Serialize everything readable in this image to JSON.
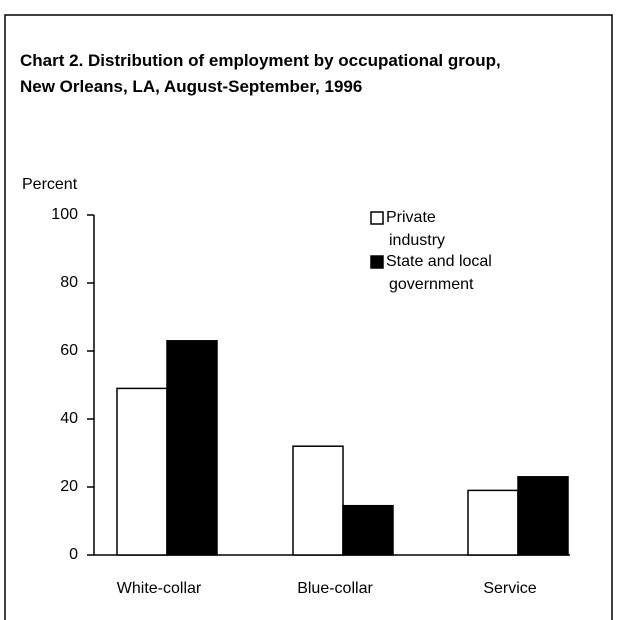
{
  "chart_data": {
    "type": "bar",
    "title": "Chart 2. Distribution of employment by occupational group, New Orleans, LA, August-September, 1996",
    "y_label": "Percent",
    "categories": [
      "White-collar",
      "Blue-collar",
      "Service"
    ],
    "series": [
      {
        "name": "Private industry",
        "color": "#ffffff",
        "values": [
          49,
          32,
          19
        ]
      },
      {
        "name": "State and local government",
        "color": "#000000",
        "values": [
          63,
          14.5,
          23
        ]
      }
    ],
    "ylim": [
      0,
      100
    ],
    "yticks": [
      0,
      20,
      40,
      60,
      80,
      100
    ],
    "grid": false
  }
}
